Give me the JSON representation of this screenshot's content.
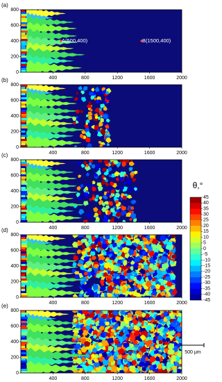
{
  "chart_data": [
    {
      "type": "map",
      "label": "(a)",
      "xlim": [
        0,
        2000
      ],
      "ylim": [
        0,
        800
      ],
      "xticks": [
        400,
        800,
        1200,
        1600,
        2000
      ],
      "yticks": [
        0,
        200,
        400,
        600,
        800
      ],
      "annotations": [
        {
          "text": "A(500,400)",
          "x": 500,
          "y": 400
        },
        {
          "text": "B(1500,400)",
          "x": 1500,
          "y": 400
        }
      ]
    },
    {
      "type": "map",
      "label": "(b)",
      "xlim": [
        0,
        2000
      ],
      "ylim": [
        0,
        800
      ],
      "xticks": [
        400,
        800,
        1200,
        1600,
        2000
      ],
      "yticks": [
        0,
        200,
        400,
        600,
        800
      ]
    },
    {
      "type": "map",
      "label": "(c)",
      "xlim": [
        0,
        2000
      ],
      "ylim": [
        0,
        800
      ],
      "xticks": [
        400,
        800,
        1200,
        1600,
        2000
      ],
      "yticks": [
        0,
        200,
        400,
        600,
        800
      ]
    },
    {
      "type": "map",
      "label": "(d)",
      "xlim": [
        0,
        2000
      ],
      "ylim": [
        0,
        800
      ],
      "xticks": [
        400,
        800,
        1200,
        1600,
        2000
      ],
      "yticks": [
        0,
        200,
        400,
        600,
        800
      ]
    },
    {
      "type": "map",
      "label": "(e)",
      "xlim": [
        0,
        2000
      ],
      "ylim": [
        0,
        800
      ],
      "xticks": [
        400,
        800,
        1200,
        1600,
        2000
      ],
      "yticks": [
        0,
        200,
        400,
        600,
        800
      ]
    }
  ],
  "colorbar": {
    "title": "θ,°",
    "lim": [
      -45,
      45
    ],
    "ticks": [
      45,
      40,
      35,
      30,
      25,
      20,
      15,
      10,
      5,
      0,
      -5,
      -10,
      -15,
      -20,
      -25,
      -30,
      -35,
      -40,
      -45
    ]
  },
  "scale_bar": "500 μm"
}
